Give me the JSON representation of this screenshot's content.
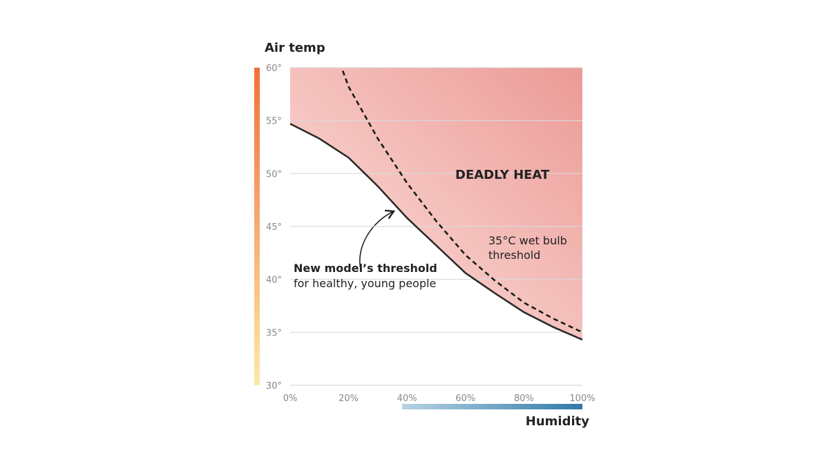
{
  "chart_data": {
    "type": "line",
    "y_label": "Air temp",
    "x_label": "Humidity",
    "xlim": [
      0,
      100
    ],
    "ylim": [
      30,
      60
    ],
    "xticks": [
      {
        "value": 0,
        "label": "0%"
      },
      {
        "value": 20,
        "label": "20%"
      },
      {
        "value": 40,
        "label": "40%"
      },
      {
        "value": 60,
        "label": "60%"
      },
      {
        "value": 80,
        "label": "80%"
      },
      {
        "value": 100,
        "label": "100%"
      }
    ],
    "yticks": [
      {
        "value": 30,
        "label": "30°"
      },
      {
        "value": 35,
        "label": "35°"
      },
      {
        "value": 40,
        "label": "40°"
      },
      {
        "value": 45,
        "label": "45°"
      },
      {
        "value": 50,
        "label": "50°"
      },
      {
        "value": 55,
        "label": "55°"
      },
      {
        "value": 60,
        "label": "60°"
      }
    ],
    "grid": true,
    "series": [
      {
        "color": "#2b2b2b",
        "dashed": false,
        "x": [
          0,
          10,
          20,
          30,
          40,
          50,
          60,
          70,
          80,
          90,
          100
        ],
        "values": [
          54.7,
          53.3,
          51.5,
          48.8,
          45.8,
          43.2,
          40.6,
          38.7,
          36.9,
          35.5,
          34.3
        ]
      },
      {
        "color": "#1a1a1a",
        "dashed": true,
        "x": [
          18,
          20,
          30,
          40,
          50,
          60,
          70,
          80,
          90,
          100
        ],
        "values": [
          59.7,
          58.2,
          53.3,
          49.1,
          45.5,
          42.3,
          39.9,
          37.8,
          36.3,
          35.0
        ]
      }
    ],
    "annotations": [
      "DEADLY HEAT",
      "New model’s threshold",
      "for healthy, young people",
      "35°C wet bulb",
      "threshold"
    ]
  }
}
